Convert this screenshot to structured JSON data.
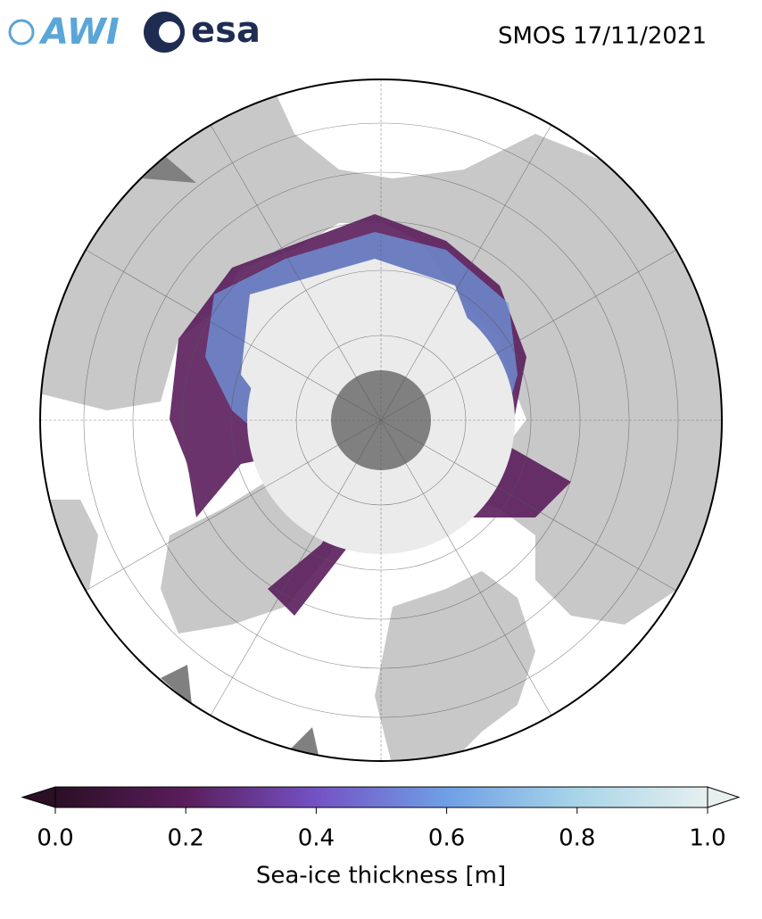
{
  "header": {
    "logos": [
      "AWI",
      "esa"
    ],
    "title": "SMOS 17/11/2021"
  },
  "colorbar": {
    "label": "Sea-ice thickness [m]",
    "lim": [
      0,
      1
    ],
    "ticks": [
      {
        "value": 0,
        "label": "0.0"
      },
      {
        "value": 0.2,
        "label": "0.2"
      },
      {
        "value": 0.4,
        "label": "0.4"
      },
      {
        "value": 0.6,
        "label": "0.6"
      },
      {
        "value": 0.8,
        "label": "0.8"
      },
      {
        "value": 1,
        "label": "1.0"
      }
    ],
    "colors": [
      "#2a0f25",
      "#5a1d5c",
      "#7452c4",
      "#6f9fe6",
      "#a8d5e8",
      "#e6f0ef"
    ]
  }
}
